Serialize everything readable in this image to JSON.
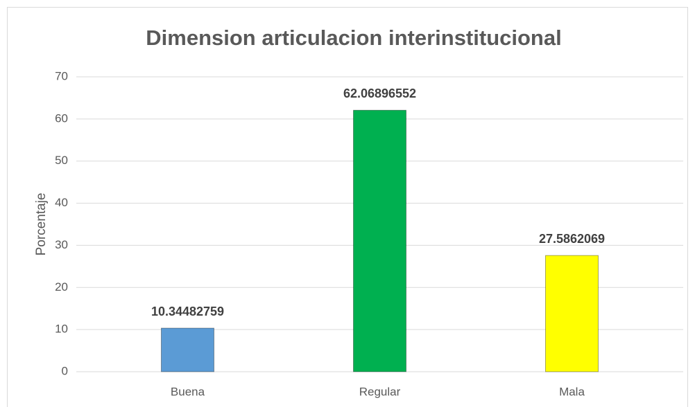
{
  "chart_data": {
    "type": "bar",
    "title": "Dimension articulacion interinstitucional",
    "y_label": "Porcentaje",
    "categories": [
      "Buena",
      "Regular",
      "Mala"
    ],
    "values": [
      10.34482759,
      62.06896552,
      27.5862069
    ],
    "colors": [
      "#5b9bd5",
      "#00b050",
      "#ffff00"
    ],
    "ylim": [
      0,
      70
    ],
    "yticks": [
      0,
      10,
      20,
      30,
      40,
      50,
      60,
      70
    ],
    "grid": true
  }
}
